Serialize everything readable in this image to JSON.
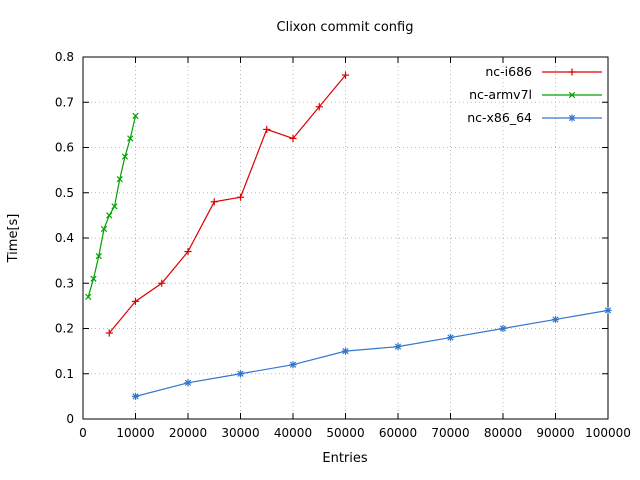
{
  "chart_data": {
    "type": "line",
    "title": "Clixon commit config",
    "xlabel": "Entries",
    "ylabel": "Time[s]",
    "xlim": [
      0,
      100000
    ],
    "ylim": [
      0,
      0.8
    ],
    "xticks": [
      0,
      10000,
      20000,
      30000,
      40000,
      50000,
      60000,
      70000,
      80000,
      90000,
      100000
    ],
    "yticks": [
      0,
      0.1,
      0.2,
      0.3,
      0.4,
      0.5,
      0.6,
      0.7,
      0.8
    ],
    "grid": true,
    "legend_position": "top-right",
    "colors": {
      "grid": "#b8b8b8",
      "border": "#000000",
      "background": "#ffffff"
    },
    "series": [
      {
        "name": "nc-i686",
        "color": "#dd0000",
        "marker": "plus",
        "points": [
          [
            5000,
            0.19
          ],
          [
            10000,
            0.26
          ],
          [
            15000,
            0.3
          ],
          [
            20000,
            0.37
          ],
          [
            25000,
            0.48
          ],
          [
            30000,
            0.49
          ],
          [
            35000,
            0.64
          ],
          [
            40000,
            0.62
          ],
          [
            45000,
            0.69
          ],
          [
            50000,
            0.76
          ]
        ]
      },
      {
        "name": "nc-armv7l",
        "color": "#00a000",
        "marker": "cross",
        "points": [
          [
            1000,
            0.27
          ],
          [
            2000,
            0.31
          ],
          [
            3000,
            0.36
          ],
          [
            4000,
            0.42
          ],
          [
            5000,
            0.45
          ],
          [
            6000,
            0.47
          ],
          [
            7000,
            0.53
          ],
          [
            8000,
            0.58
          ],
          [
            9000,
            0.62
          ],
          [
            10000,
            0.67
          ]
        ]
      },
      {
        "name": "nc-x86_64",
        "color": "#3377cc",
        "marker": "asterisk",
        "points": [
          [
            10000,
            0.05
          ],
          [
            20000,
            0.08
          ],
          [
            30000,
            0.1
          ],
          [
            40000,
            0.12
          ],
          [
            50000,
            0.15
          ],
          [
            60000,
            0.16
          ],
          [
            70000,
            0.18
          ],
          [
            80000,
            0.2
          ],
          [
            90000,
            0.22
          ],
          [
            100000,
            0.24
          ]
        ]
      }
    ]
  }
}
